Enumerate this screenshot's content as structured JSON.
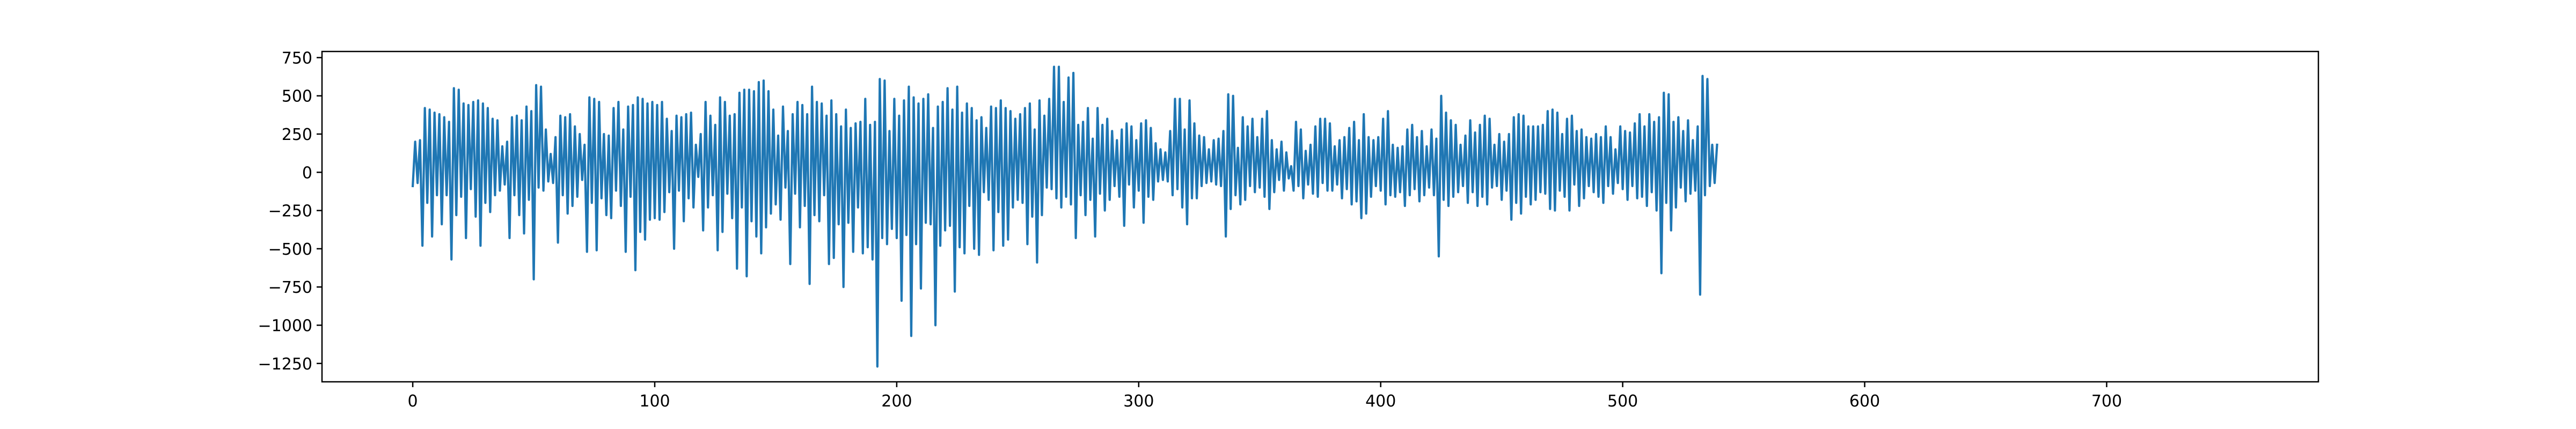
{
  "chart_data": {
    "type": "line",
    "title": "",
    "xlabel": "",
    "ylabel": "",
    "xlim": [
      -37.5,
      787.5
    ],
    "ylim": [
      -1370,
      790
    ],
    "grid": false,
    "legend": "none",
    "x_ticks": [
      0,
      100,
      200,
      300,
      400,
      500,
      600,
      700
    ],
    "y_ticks": [
      750,
      500,
      250,
      0,
      -250,
      -500,
      -750,
      -1000,
      -1250
    ],
    "series": [
      {
        "color": "#1f77b4",
        "x_start": 0,
        "x_step": 1,
        "values": [
          -90,
          200,
          -70,
          210,
          -480,
          420,
          -200,
          410,
          -420,
          390,
          -150,
          380,
          -340,
          360,
          -150,
          330,
          -570,
          550,
          -280,
          540,
          -160,
          450,
          -430,
          440,
          -110,
          460,
          -290,
          470,
          -480,
          450,
          -200,
          420,
          -260,
          350,
          -150,
          340,
          -120,
          170,
          -80,
          200,
          -430,
          360,
          -150,
          370,
          -280,
          340,
          -400,
          430,
          -180,
          400,
          -700,
          570,
          -100,
          560,
          -120,
          280,
          -60,
          120,
          -70,
          230,
          -460,
          370,
          -150,
          360,
          -270,
          380,
          -220,
          300,
          -160,
          250,
          -50,
          180,
          -520,
          490,
          -200,
          480,
          -510,
          460,
          -170,
          250,
          -280,
          240,
          -300,
          420,
          -120,
          460,
          -220,
          280,
          -520,
          430,
          -160,
          440,
          -640,
          490,
          -390,
          480,
          -440,
          450,
          -310,
          460,
          -300,
          440,
          -310,
          460,
          -260,
          350,
          -130,
          270,
          -500,
          370,
          -120,
          360,
          -320,
          380,
          -170,
          390,
          -230,
          180,
          -30,
          250,
          -380,
          460,
          -230,
          370,
          -150,
          310,
          -510,
          490,
          -390,
          460,
          -140,
          370,
          -300,
          380,
          -630,
          520,
          -230,
          540,
          -680,
          540,
          -320,
          530,
          -420,
          590,
          -530,
          600,
          -360,
          530,
          -270,
          410,
          -210,
          240,
          -310,
          430,
          -100,
          270,
          -600,
          380,
          -140,
          460,
          -360,
          440,
          -220,
          380,
          -730,
          560,
          -280,
          460,
          -320,
          450,
          -150,
          370,
          -600,
          470,
          -560,
          380,
          -340,
          300,
          -750,
          410,
          -330,
          290,
          -520,
          320,
          -230,
          330,
          -530,
          480,
          -490,
          310,
          -570,
          330,
          -1270,
          610,
          -430,
          600,
          -470,
          270,
          -370,
          480,
          -430,
          370,
          -840,
          470,
          -410,
          560,
          -1070,
          490,
          -470,
          450,
          -760,
          480,
          -330,
          510,
          -340,
          290,
          -1000,
          430,
          -480,
          460,
          -380,
          550,
          -350,
          410,
          -780,
          560,
          -490,
          390,
          -530,
          450,
          -220,
          420,
          -500,
          340,
          -540,
          360,
          -130,
          290,
          -180,
          430,
          -510,
          420,
          -260,
          470,
          -480,
          420,
          -440,
          400,
          -230,
          350,
          -180,
          380,
          -200,
          420,
          -470,
          450,
          -290,
          280,
          -590,
          470,
          -280,
          370,
          -100,
          480,
          -110,
          690,
          -170,
          690,
          -230,
          460,
          -160,
          620,
          -210,
          650,
          -430,
          310,
          -150,
          330,
          -280,
          420,
          -180,
          220,
          -420,
          420,
          -140,
          310,
          -250,
          350,
          -180,
          270,
          -90,
          210,
          -160,
          280,
          -350,
          320,
          -80,
          300,
          -230,
          210,
          -120,
          320,
          -330,
          340,
          -160,
          290,
          -180,
          190,
          -60,
          150,
          -50,
          130,
          -60,
          270,
          -150,
          480,
          -110,
          480,
          -230,
          280,
          -340,
          470,
          -170,
          320,
          -170,
          240,
          -90,
          230,
          -70,
          150,
          -60,
          210,
          -80,
          220,
          -90,
          270,
          -420,
          510,
          -240,
          500,
          -150,
          160,
          -210,
          360,
          -180,
          300,
          -90,
          350,
          -130,
          230,
          -100,
          350,
          -160,
          400,
          -240,
          210,
          -130,
          150,
          -50,
          200,
          -120,
          130,
          -40,
          40,
          -120,
          330,
          -90,
          280,
          -170,
          140,
          -80,
          180,
          -140,
          300,
          -160,
          350,
          -70,
          350,
          -120,
          320,
          -120,
          170,
          -80,
          210,
          -170,
          230,
          -110,
          290,
          -210,
          330,
          -190,
          210,
          -300,
          380,
          -270,
          230,
          -160,
          210,
          -90,
          230,
          -120,
          350,
          -210,
          400,
          -150,
          180,
          -160,
          160,
          -130,
          170,
          -220,
          280,
          -150,
          310,
          -110,
          230,
          -190,
          270,
          -150,
          170,
          -100,
          280,
          -150,
          220,
          -550,
          500,
          -180,
          390,
          -220,
          340,
          -160,
          310,
          -130,
          180,
          -90,
          240,
          -200,
          340,
          -130,
          260,
          -220,
          310,
          -160,
          370,
          -210,
          350,
          -100,
          180,
          -90,
          250,
          -180,
          200,
          -120,
          250,
          -310,
          360,
          -200,
          380,
          -270,
          370,
          -160,
          300,
          -210,
          300,
          -180,
          300,
          -130,
          310,
          -140,
          400,
          -240,
          410,
          -250,
          390,
          -120,
          250,
          -160,
          350,
          -250,
          370,
          -80,
          270,
          -220,
          280,
          -170,
          230,
          -90,
          220,
          -130,
          250,
          -160,
          230,
          -200,
          300,
          -90,
          230,
          -140,
          150,
          -70,
          300,
          -110,
          270,
          -180,
          260,
          -90,
          320,
          -170,
          380,
          -160,
          300,
          -220,
          380,
          -130,
          330,
          -250,
          360,
          -660,
          520,
          -200,
          510,
          -380,
          330,
          -230,
          360,
          -100,
          270,
          -190,
          340,
          -140,
          210,
          -120,
          300,
          -800,
          630,
          -150,
          610,
          -90,
          180,
          -70,
          180
        ]
      }
    ]
  }
}
